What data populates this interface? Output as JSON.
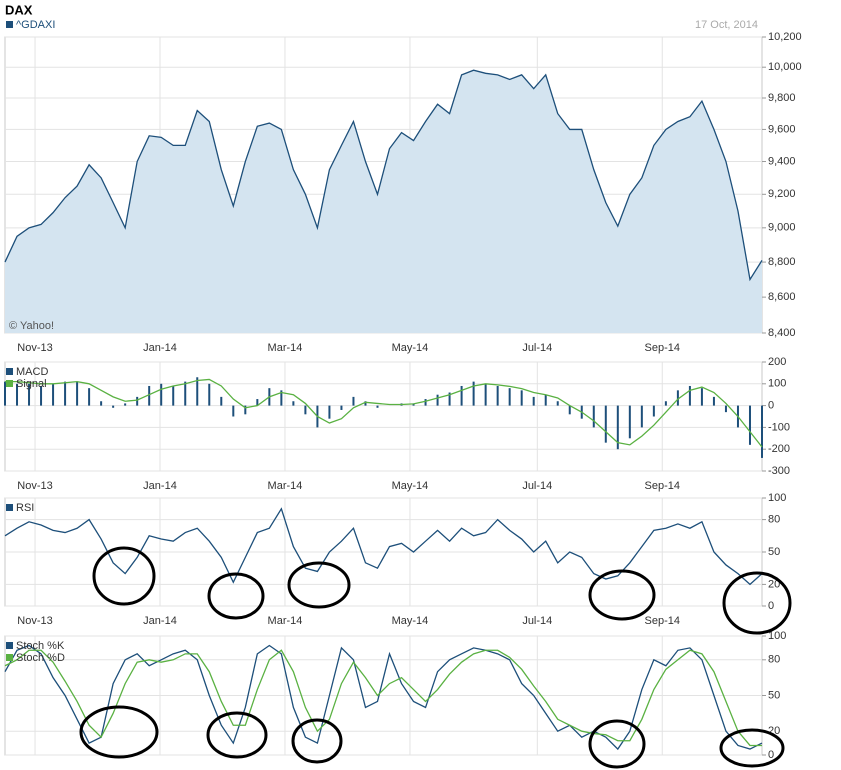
{
  "chart_data": [
    {
      "type": "area",
      "title": "DAX",
      "date": "17 Oct, 2014",
      "credit": "© Yahoo!",
      "log_scale": true,
      "grid": true,
      "xlim": [
        0,
        63
      ],
      "ylim": [
        8400,
        10200
      ],
      "yticks": [
        {
          "value": 10200,
          "label": "10,200"
        },
        {
          "value": 10000,
          "label": "10,000"
        },
        {
          "value": 9800,
          "label": "9,800"
        },
        {
          "value": 9600,
          "label": "9,600"
        },
        {
          "value": 9400,
          "label": "9,400"
        },
        {
          "value": 9200,
          "label": "9,200"
        },
        {
          "value": 9000,
          "label": "9,000"
        },
        {
          "value": 8800,
          "label": "8,800"
        },
        {
          "value": 8600,
          "label": "8,600"
        },
        {
          "value": 8400,
          "label": "8,400"
        }
      ],
      "xticks": [
        {
          "value": 2.5,
          "label": "Nov-13"
        },
        {
          "value": 12.9,
          "label": "Jan-14"
        },
        {
          "value": 23.3,
          "label": "Mar-14"
        },
        {
          "value": 33.7,
          "label": "May-14"
        },
        {
          "value": 44.3,
          "label": "Jul-14"
        },
        {
          "value": 54.7,
          "label": "Sep-14"
        }
      ],
      "series": [
        {
          "name": "^GDAXI",
          "color": "#1d4f7a",
          "fill": "#d4e4f0",
          "values": [
            8800,
            8950,
            9000,
            9020,
            9090,
            9180,
            9250,
            9380,
            9300,
            9150,
            9000,
            9400,
            9560,
            9550,
            9500,
            9500,
            9720,
            9650,
            9350,
            9130,
            9400,
            9620,
            9640,
            9600,
            9350,
            9200,
            9000,
            9350,
            9500,
            9650,
            9400,
            9200,
            9480,
            9580,
            9530,
            9650,
            9760,
            9700,
            9950,
            9980,
            9960,
            9950,
            9920,
            9950,
            9860,
            9950,
            9700,
            9600,
            9600,
            9350,
            9150,
            9010,
            9200,
            9300,
            9500,
            9600,
            9650,
            9680,
            9780,
            9600,
            9400,
            9100,
            8700,
            8810
          ]
        }
      ]
    },
    {
      "type": "combo",
      "grid": true,
      "xlim": [
        0,
        63
      ],
      "ylim": [
        -300,
        200
      ],
      "yticks": [
        200,
        100,
        0,
        -100,
        -200,
        -300
      ],
      "xticks": [
        {
          "value": 2.5,
          "label": "Nov-13"
        },
        {
          "value": 12.9,
          "label": "Jan-14"
        },
        {
          "value": 23.3,
          "label": "Mar-14"
        },
        {
          "value": 33.7,
          "label": "May-14"
        },
        {
          "value": 44.3,
          "label": "Jul-14"
        },
        {
          "value": 54.7,
          "label": "Sep-14"
        }
      ],
      "series": [
        {
          "name": "MACD",
          "type": "bar",
          "color": "#1d4f7a",
          "values": [
            110,
            100,
            100,
            90,
            100,
            110,
            110,
            80,
            20,
            -10,
            10,
            40,
            90,
            100,
            90,
            110,
            130,
            100,
            40,
            -50,
            -40,
            30,
            80,
            70,
            20,
            -40,
            -100,
            -60,
            -20,
            40,
            20,
            -10,
            0,
            10,
            10,
            30,
            50,
            60,
            90,
            110,
            100,
            90,
            80,
            70,
            40,
            50,
            20,
            -40,
            -60,
            -100,
            -170,
            -200,
            -150,
            -100,
            -50,
            20,
            70,
            90,
            80,
            40,
            -30,
            -100,
            -180,
            -240
          ]
        },
        {
          "name": "Signal",
          "type": "line",
          "color": "#5ab142",
          "values": [
            110,
            110,
            105,
            100,
            100,
            105,
            110,
            100,
            70,
            40,
            20,
            25,
            50,
            75,
            90,
            100,
            115,
            120,
            90,
            30,
            -10,
            0,
            40,
            60,
            50,
            10,
            -50,
            -80,
            -60,
            -10,
            15,
            10,
            5,
            5,
            8,
            20,
            35,
            50,
            70,
            90,
            100,
            95,
            88,
            78,
            60,
            50,
            35,
            0,
            -30,
            -70,
            -120,
            -170,
            -180,
            -140,
            -90,
            -30,
            30,
            70,
            85,
            60,
            10,
            -50,
            -120,
            -190
          ]
        }
      ]
    },
    {
      "type": "line",
      "grid": true,
      "xlim": [
        0,
        63
      ],
      "ylim": [
        0,
        100
      ],
      "yticks": [
        100,
        80,
        50,
        20,
        0
      ],
      "xticks": [
        {
          "value": 2.5,
          "label": "Nov-13"
        },
        {
          "value": 12.9,
          "label": "Jan-14"
        },
        {
          "value": 23.3,
          "label": "Mar-14"
        },
        {
          "value": 33.7,
          "label": "May-14"
        },
        {
          "value": 44.3,
          "label": "Jul-14"
        },
        {
          "value": 54.7,
          "label": "Sep-14"
        }
      ],
      "series": [
        {
          "name": "RSI",
          "color": "#1d4f7a",
          "values": [
            65,
            72,
            78,
            75,
            70,
            68,
            72,
            80,
            62,
            40,
            30,
            45,
            65,
            62,
            60,
            68,
            72,
            60,
            45,
            22,
            45,
            68,
            72,
            90,
            55,
            35,
            32,
            50,
            60,
            72,
            40,
            35,
            55,
            58,
            50,
            60,
            70,
            60,
            72,
            65,
            68,
            80,
            70,
            62,
            50,
            60,
            40,
            50,
            45,
            30,
            25,
            28,
            40,
            55,
            70,
            72,
            76,
            72,
            78,
            50,
            38,
            30,
            20,
            30
          ]
        }
      ]
    },
    {
      "type": "line",
      "grid": true,
      "xlim": [
        0,
        63
      ],
      "ylim": [
        0,
        100
      ],
      "yticks": [
        100,
        80,
        50,
        20,
        0
      ],
      "xticks": [
        2.5,
        12.9,
        23.3,
        33.7,
        44.3,
        54.7
      ],
      "series": [
        {
          "name": "Stoch %K",
          "color": "#1d4f7a",
          "values": [
            70,
            88,
            92,
            85,
            65,
            50,
            30,
            10,
            15,
            60,
            80,
            85,
            75,
            80,
            85,
            88,
            80,
            50,
            25,
            10,
            40,
            85,
            92,
            85,
            40,
            15,
            10,
            50,
            90,
            80,
            40,
            45,
            85,
            60,
            45,
            40,
            70,
            80,
            85,
            90,
            88,
            85,
            80,
            60,
            50,
            35,
            20,
            25,
            15,
            20,
            15,
            5,
            20,
            55,
            80,
            75,
            88,
            90,
            80,
            50,
            20,
            8,
            5,
            10
          ]
        },
        {
          "name": "Stoch %D",
          "color": "#5ab142",
          "values": [
            75,
            80,
            88,
            88,
            78,
            62,
            45,
            25,
            15,
            35,
            60,
            78,
            80,
            78,
            80,
            85,
            85,
            70,
            45,
            25,
            25,
            55,
            80,
            88,
            70,
            40,
            20,
            30,
            60,
            78,
            65,
            50,
            60,
            65,
            55,
            45,
            55,
            68,
            78,
            85,
            88,
            88,
            82,
            72,
            58,
            45,
            30,
            25,
            20,
            18,
            17,
            12,
            12,
            30,
            55,
            72,
            80,
            88,
            85,
            70,
            45,
            20,
            8,
            8
          ]
        }
      ]
    }
  ]
}
